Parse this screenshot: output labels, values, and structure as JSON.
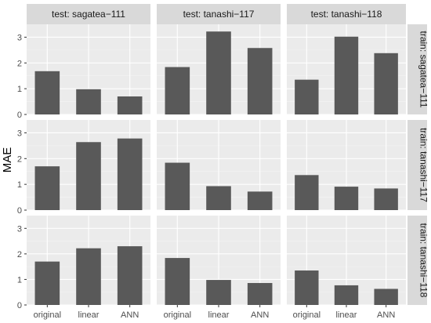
{
  "chart_data": {
    "type": "bar",
    "facet_layout": "grid",
    "ylabel": "MAE",
    "xlabel": "",
    "ylim": [
      0,
      3.5
    ],
    "y_ticks": [
      0,
      1,
      2,
      3
    ],
    "categories": [
      "original",
      "linear",
      "ANN"
    ],
    "col_labels": [
      "test: sagatea−111",
      "test: tanashi−117",
      "test: tanashi−118"
    ],
    "row_labels": [
      "train: sagatea−111",
      "train: tanashi−117",
      "train: tanashi−118"
    ],
    "bar_color": "#595959",
    "panel_background": "#ebebeb",
    "strip_color": "#d9d9d9",
    "grid": true,
    "panels": [
      [
        {
          "values": [
            1.68,
            0.98,
            0.7
          ]
        },
        {
          "values": [
            1.84,
            3.22,
            2.58
          ]
        },
        {
          "values": [
            1.35,
            3.02,
            2.38
          ]
        }
      ],
      [
        {
          "values": [
            1.7,
            2.64,
            2.78
          ]
        },
        {
          "values": [
            1.84,
            0.93,
            0.72
          ]
        },
        {
          "values": [
            1.36,
            0.91,
            0.84
          ]
        }
      ],
      [
        {
          "values": [
            1.7,
            2.22,
            2.3
          ]
        },
        {
          "values": [
            1.84,
            0.98,
            0.86
          ]
        },
        {
          "values": [
            1.35,
            0.77,
            0.63
          ]
        }
      ]
    ]
  }
}
